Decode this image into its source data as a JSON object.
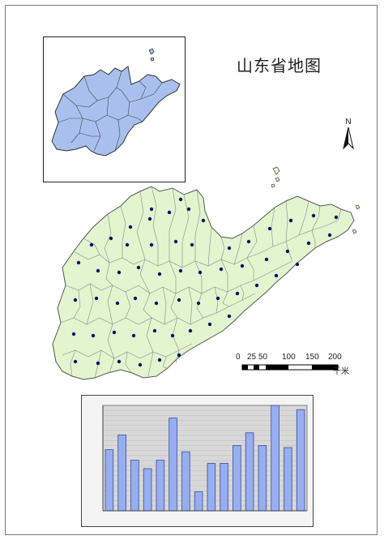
{
  "map": {
    "title": "山东省地图",
    "north_label": "N",
    "fill_color": "#e2f5cf",
    "boundary_color": "#7a7a7a",
    "inset_fill_color": "#a9c0ee",
    "point_color": "#0d1166"
  },
  "scale_bar": {
    "ticks": [
      "0",
      "25",
      "50",
      "100",
      "150",
      "200"
    ],
    "unit": "千米"
  },
  "chart_data": {
    "type": "bar",
    "title": "",
    "xlabel": "",
    "ylabel": "",
    "bar_color": "#97aef0",
    "bar_edge_color": "#3a4a9a",
    "plot_background": "#d8d8d8",
    "ylim": [
      0,
      100
    ],
    "grid": true,
    "legend": "none",
    "values": [
      58,
      72,
      48,
      40,
      48,
      88,
      56,
      18,
      45,
      45,
      62,
      74,
      62,
      100,
      60,
      96
    ]
  }
}
